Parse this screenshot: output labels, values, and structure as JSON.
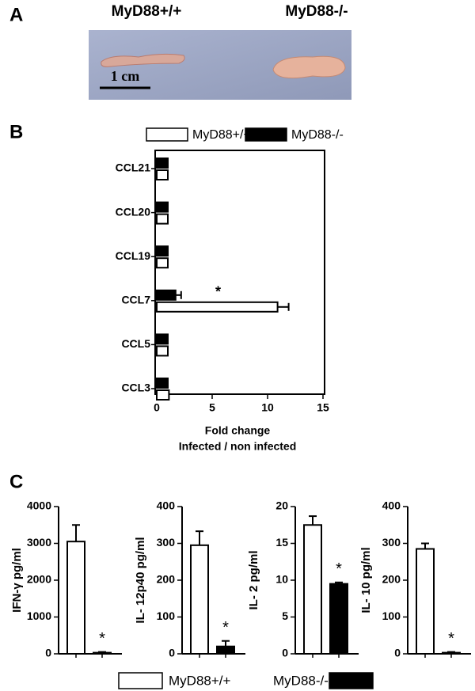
{
  "panel_labels": [
    "A",
    "B",
    "C"
  ],
  "photo": {
    "labels": [
      "MyD88+/+",
      "MyD88-/-"
    ],
    "scale_bar": "1 cm"
  },
  "legend": [
    {
      "name": "MyD88+/+",
      "color": "#ffffff"
    },
    {
      "name": "MyD88-/-",
      "color": "#000000"
    }
  ],
  "chart_data": [
    {
      "type": "hbar",
      "categories": [
        "CCL21",
        "CCL20",
        "CCL19",
        "CCL7",
        "CCL5",
        "CCL3"
      ],
      "series": [
        {
          "name": "MyD88+/+",
          "color": "#ffffff",
          "values": [
            1,
            1,
            1,
            10.9,
            1,
            1.1
          ],
          "errors": [
            null,
            null,
            null,
            1,
            null,
            null
          ]
        },
        {
          "name": "MyD88-/-",
          "color": "#000000",
          "values": [
            1,
            1,
            1,
            1.7,
            1,
            1
          ],
          "errors": [
            null,
            null,
            null,
            0.5,
            null,
            null
          ]
        }
      ],
      "annotation": "*",
      "xlim": [
        0,
        15
      ],
      "xticks": [
        0,
        5,
        10,
        15
      ],
      "xlabel": [
        "Fold change",
        "Infected / non infected"
      ]
    },
    {
      "type": "bar",
      "ylabel": "IFN-γ pg/ml",
      "values": [
        3050,
        30
      ],
      "errors": [
        450,
        20
      ],
      "colors": [
        "#ffffff",
        "#000000"
      ],
      "annotation": "*",
      "ylim": [
        0,
        4000
      ],
      "yticks": [
        0,
        1000,
        2000,
        3000,
        4000
      ]
    },
    {
      "type": "bar",
      "ylabel": "IL- 12p40  pg/ml",
      "values": [
        295,
        20
      ],
      "errors": [
        38,
        15
      ],
      "colors": [
        "#ffffff",
        "#000000"
      ],
      "annotation": "*",
      "ylim": [
        0,
        400
      ],
      "yticks": [
        0,
        100,
        200,
        300,
        400
      ]
    },
    {
      "type": "bar",
      "ylabel": "IL- 2 pg/ml",
      "values": [
        17.5,
        9.5
      ],
      "errors": [
        1.2,
        0.2
      ],
      "colors": [
        "#ffffff",
        "#000000"
      ],
      "annotation": "*",
      "ylim": [
        0,
        20
      ],
      "yticks": [
        0,
        5,
        10,
        15,
        20
      ]
    },
    {
      "type": "bar",
      "ylabel": "IL- 10 pg/ml",
      "values": [
        285,
        3
      ],
      "errors": [
        15,
        2
      ],
      "colors": [
        "#ffffff",
        "#000000"
      ],
      "annotation": "*",
      "ylim": [
        0,
        400
      ],
      "yticks": [
        0,
        100,
        200,
        300,
        400
      ]
    }
  ]
}
